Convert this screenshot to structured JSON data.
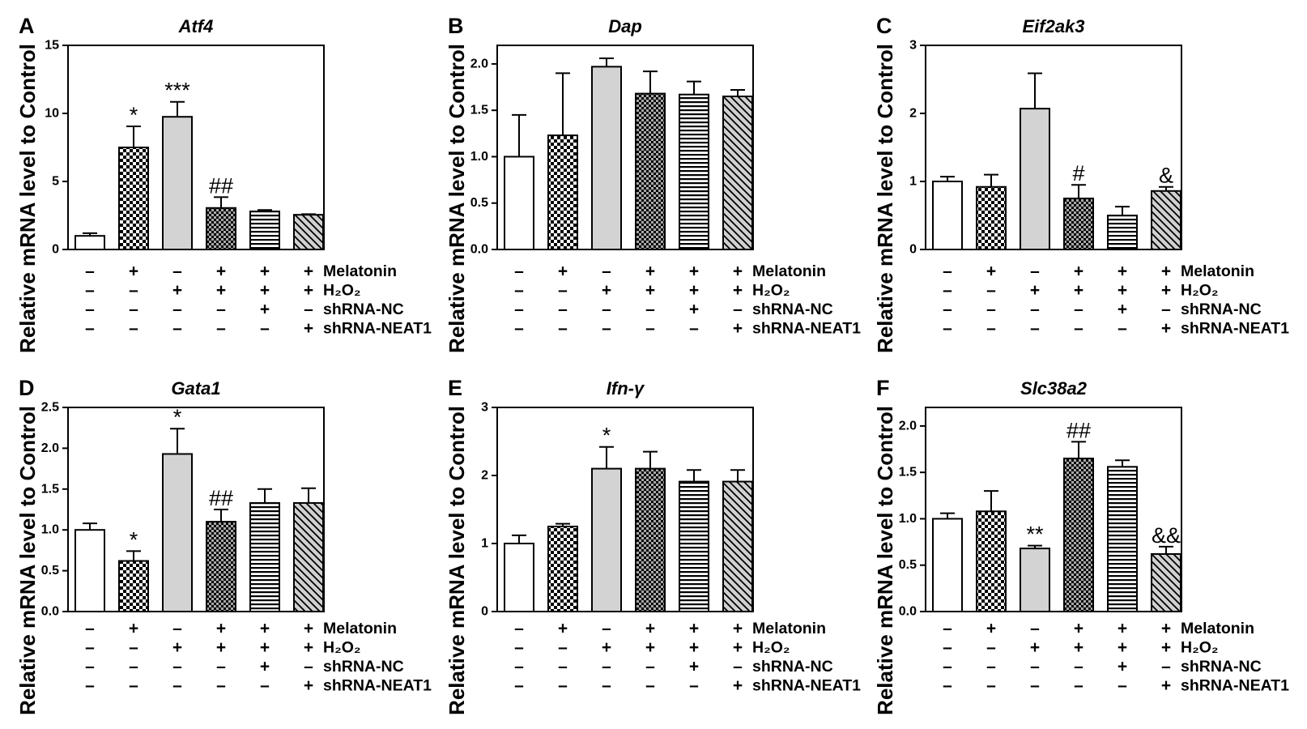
{
  "colors": {
    "outline": "#000000",
    "control_fill": "#ffffff",
    "h2o2_fill": "#d3d3d3",
    "dark_checker_base": "#a8a8a8",
    "diagonal_base": "#d0d0d0"
  },
  "chart_data": [
    {
      "panel": "A",
      "type": "bar",
      "title": "Atf4",
      "ylabel": "Relative mRNA level to Control",
      "ylim": [
        0,
        15
      ],
      "yticks": [
        0,
        5,
        10,
        15
      ],
      "ytick_labels": [
        "0",
        "5",
        "10",
        "15"
      ],
      "values": [
        1.0,
        7.5,
        9.75,
        3.05,
        2.8,
        2.55
      ],
      "errors": [
        0.2,
        1.55,
        1.1,
        0.8,
        0.1,
        0.05
      ],
      "annotations": [
        {
          "bar": 1,
          "text": "*"
        },
        {
          "bar": 2,
          "text": "***"
        },
        {
          "bar": 3,
          "text": "##"
        }
      ],
      "treatments": [
        {
          "label": "Melatonin",
          "signs": [
            "–",
            "+",
            "–",
            "+",
            "+",
            "+"
          ]
        },
        {
          "label": "H₂O₂",
          "signs": [
            "–",
            "–",
            "+",
            "+",
            "+",
            "+"
          ]
        },
        {
          "label": "shRNA-NC",
          "signs": [
            "–",
            "–",
            "–",
            "–",
            "+",
            "–"
          ]
        },
        {
          "label": "shRNA-NEAT1",
          "signs": [
            "–",
            "–",
            "–",
            "–",
            "–",
            "+"
          ]
        }
      ]
    },
    {
      "panel": "B",
      "type": "bar",
      "title": "Dap",
      "ylabel": "Relative mRNA level to Control",
      "ylim": [
        0,
        2.2
      ],
      "yticks": [
        0,
        0.5,
        1.0,
        1.5,
        2.0
      ],
      "ytick_labels": [
        "0.0",
        "0.5",
        "1.0",
        "1.5",
        "2.0"
      ],
      "values": [
        1.0,
        1.23,
        1.97,
        1.68,
        1.67,
        1.65
      ],
      "errors": [
        0.45,
        0.67,
        0.09,
        0.24,
        0.14,
        0.07
      ],
      "annotations": [],
      "treatments": [
        {
          "label": "Melatonin",
          "signs": [
            "–",
            "+",
            "–",
            "+",
            "+",
            "+"
          ]
        },
        {
          "label": "H₂O₂",
          "signs": [
            "–",
            "–",
            "+",
            "+",
            "+",
            "+"
          ]
        },
        {
          "label": "shRNA-NC",
          "signs": [
            "–",
            "–",
            "–",
            "–",
            "+",
            "–"
          ]
        },
        {
          "label": "shRNA-NEAT1",
          "signs": [
            "–",
            "–",
            "–",
            "–",
            "–",
            "+"
          ]
        }
      ]
    },
    {
      "panel": "C",
      "type": "bar",
      "title": "Eif2ak3",
      "ylabel": "Relative mRNA level to Control",
      "ylim": [
        0,
        3
      ],
      "yticks": [
        0,
        1,
        2,
        3
      ],
      "ytick_labels": [
        "0",
        "1",
        "2",
        "3"
      ],
      "values": [
        1.0,
        0.92,
        2.07,
        0.75,
        0.5,
        0.86
      ],
      "errors": [
        0.07,
        0.18,
        0.52,
        0.2,
        0.13,
        0.06
      ],
      "annotations": [
        {
          "bar": 3,
          "text": "#"
        },
        {
          "bar": 5,
          "text": "&"
        }
      ],
      "treatments": [
        {
          "label": "Melatonin",
          "signs": [
            "–",
            "+",
            "–",
            "+",
            "+",
            "+"
          ]
        },
        {
          "label": "H₂O₂",
          "signs": [
            "–",
            "–",
            "+",
            "+",
            "+",
            "+"
          ]
        },
        {
          "label": "shRNA-NC",
          "signs": [
            "–",
            "–",
            "–",
            "–",
            "+",
            "–"
          ]
        },
        {
          "label": "shRNA-NEAT1",
          "signs": [
            "–",
            "–",
            "–",
            "–",
            "–",
            "+"
          ]
        }
      ]
    },
    {
      "panel": "D",
      "type": "bar",
      "title": "Gata1",
      "ylabel": "Relative mRNA level to Control",
      "ylim": [
        0,
        2.5
      ],
      "yticks": [
        0,
        0.5,
        1.0,
        1.5,
        2.0,
        2.5
      ],
      "ytick_labels": [
        "0.0",
        "0.5",
        "1.0",
        "1.5",
        "2.0",
        "2.5"
      ],
      "values": [
        1.0,
        0.62,
        1.93,
        1.1,
        1.33,
        1.33
      ],
      "errors": [
        0.08,
        0.12,
        0.31,
        0.15,
        0.17,
        0.18
      ],
      "annotations": [
        {
          "bar": 1,
          "text": "*"
        },
        {
          "bar": 2,
          "text": "*"
        },
        {
          "bar": 3,
          "text": "##"
        }
      ],
      "treatments": [
        {
          "label": "Melatonin",
          "signs": [
            "–",
            "+",
            "–",
            "+",
            "+",
            "+"
          ]
        },
        {
          "label": "H₂O₂",
          "signs": [
            "–",
            "–",
            "+",
            "+",
            "+",
            "+"
          ]
        },
        {
          "label": "shRNA-NC",
          "signs": [
            "–",
            "–",
            "–",
            "–",
            "+",
            "–"
          ]
        },
        {
          "label": "shRNA-NEAT1",
          "signs": [
            "–",
            "–",
            "–",
            "–",
            "–",
            "+"
          ]
        }
      ]
    },
    {
      "panel": "E",
      "type": "bar",
      "title": "Ifn-γ",
      "ylabel": "Relative mRNA level to Control",
      "ylim": [
        0,
        3
      ],
      "yticks": [
        0,
        1,
        2,
        3
      ],
      "ytick_labels": [
        "0",
        "1",
        "2",
        "3"
      ],
      "values": [
        1.0,
        1.25,
        2.1,
        2.1,
        1.91,
        1.91
      ],
      "errors": [
        0.12,
        0.04,
        0.32,
        0.25,
        0.17,
        0.17
      ],
      "annotations": [
        {
          "bar": 2,
          "text": "*"
        }
      ],
      "treatments": [
        {
          "label": "Melatonin",
          "signs": [
            "–",
            "+",
            "–",
            "+",
            "+",
            "+"
          ]
        },
        {
          "label": "H₂O₂",
          "signs": [
            "–",
            "–",
            "+",
            "+",
            "+",
            "+"
          ]
        },
        {
          "label": "shRNA-NC",
          "signs": [
            "–",
            "–",
            "–",
            "–",
            "+",
            "–"
          ]
        },
        {
          "label": "shRNA-NEAT1",
          "signs": [
            "–",
            "–",
            "–",
            "–",
            "–",
            "+"
          ]
        }
      ]
    },
    {
      "panel": "F",
      "type": "bar",
      "title": "Slc38a2",
      "ylabel": "Relative mRNA level to Control",
      "ylim": [
        0,
        2.2
      ],
      "yticks": [
        0,
        0.5,
        1.0,
        1.5,
        2.0
      ],
      "ytick_labels": [
        "0.0",
        "0.5",
        "1.0",
        "1.5",
        "2.0"
      ],
      "values": [
        1.0,
        1.08,
        0.68,
        1.65,
        1.56,
        0.62
      ],
      "errors": [
        0.06,
        0.22,
        0.03,
        0.18,
        0.07,
        0.08
      ],
      "annotations": [
        {
          "bar": 2,
          "text": "**"
        },
        {
          "bar": 3,
          "text": "##"
        },
        {
          "bar": 5,
          "text": "&&"
        }
      ],
      "treatments": [
        {
          "label": "Melatonin",
          "signs": [
            "–",
            "+",
            "–",
            "+",
            "+",
            "+"
          ]
        },
        {
          "label": "H₂O₂",
          "signs": [
            "–",
            "–",
            "+",
            "+",
            "+",
            "+"
          ]
        },
        {
          "label": "shRNA-NC",
          "signs": [
            "–",
            "–",
            "–",
            "–",
            "+",
            "–"
          ]
        },
        {
          "label": "shRNA-NEAT1",
          "signs": [
            "–",
            "–",
            "–",
            "–",
            "–",
            "+"
          ]
        }
      ]
    }
  ]
}
